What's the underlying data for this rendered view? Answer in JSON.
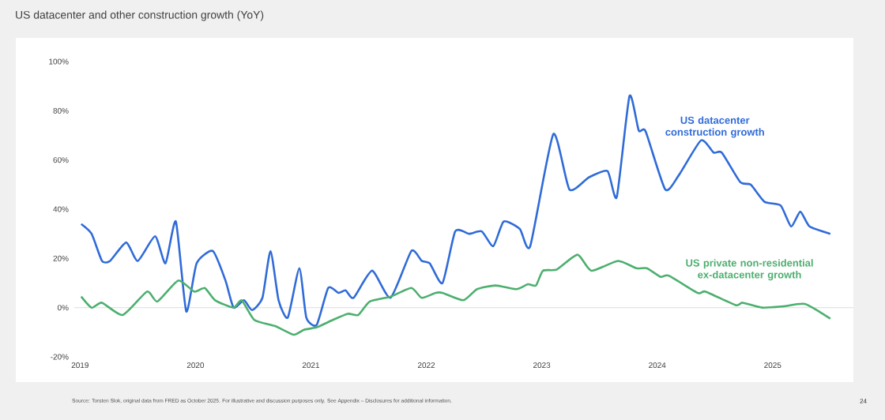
{
  "chart_data": {
    "type": "line",
    "title": "US datacenter and other construction growth (YoY)",
    "xlim": [
      2018.95,
      2025.7
    ],
    "xticks": [
      2019,
      2020,
      2021,
      2022,
      2023,
      2024,
      2025
    ],
    "ylim": [
      -20,
      100
    ],
    "yticks": [
      {
        "value": -20,
        "label": "-20%"
      },
      {
        "value": 0,
        "label": "0%"
      },
      {
        "value": 20,
        "label": "20%"
      },
      {
        "value": 40,
        "label": "40%"
      },
      {
        "value": 60,
        "label": "60%"
      },
      {
        "value": 80,
        "label": "80%"
      },
      {
        "value": 100,
        "label": "100%"
      }
    ],
    "grid": false,
    "legend": false,
    "ref_lines": [
      {
        "axis": "y",
        "value": 0,
        "color": "#e4e4e4"
      }
    ],
    "series": [
      {
        "name": "US datacenter construction growth",
        "color": "#2f6bd8",
        "x": [
          2019.01,
          2019.1,
          2019.19,
          2019.26,
          2019.4,
          2019.5,
          2019.65,
          2019.74,
          2019.83,
          2019.92,
          2020.01,
          2020.15,
          2020.26,
          2020.33,
          2020.42,
          2020.49,
          2020.58,
          2020.65,
          2020.72,
          2020.8,
          2020.9,
          2020.96,
          2021.05,
          2021.15,
          2021.24,
          2021.3,
          2021.37,
          2021.53,
          2021.69,
          2021.87,
          2021.96,
          2022.03,
          2022.14,
          2022.25,
          2022.37,
          2022.48,
          2022.58,
          2022.67,
          2022.81,
          2022.9,
          2023.1,
          2023.24,
          2023.41,
          2023.57,
          2023.65,
          2023.76,
          2023.84,
          2023.9,
          2024.07,
          2024.19,
          2024.38,
          2024.49,
          2024.56,
          2024.72,
          2024.81,
          2024.93,
          2025.07,
          2025.16,
          2025.24,
          2025.32,
          2025.5
        ],
        "values": [
          34,
          30,
          19,
          19,
          26.5,
          19,
          29,
          18,
          35,
          -1.5,
          18,
          23,
          11,
          0,
          3,
          -1,
          4,
          23,
          3,
          -4,
          16,
          -4,
          -7,
          8,
          6,
          7,
          4,
          15,
          4,
          23,
          19,
          18,
          10,
          31,
          30,
          31,
          25,
          35,
          32,
          25,
          70.5,
          48,
          53,
          55.5,
          45,
          86,
          72,
          71.6,
          48,
          54,
          68,
          63,
          63,
          51,
          50,
          43,
          41.5,
          33,
          39,
          33,
          30
        ]
      },
      {
        "name": "US private non-residential ex-datacenter growth",
        "color": "#4caf6e",
        "x": [
          2019.01,
          2019.1,
          2019.19,
          2019.37,
          2019.58,
          2019.67,
          2019.85,
          2019.99,
          2020.08,
          2020.17,
          2020.33,
          2020.4,
          2020.51,
          2020.69,
          2020.85,
          2020.94,
          2021.05,
          2021.19,
          2021.32,
          2021.41,
          2021.51,
          2021.69,
          2021.87,
          2021.96,
          2022.08,
          2022.14,
          2022.32,
          2022.44,
          2022.6,
          2022.78,
          2022.88,
          2022.95,
          2023.01,
          2023.13,
          2023.31,
          2023.43,
          2023.66,
          2023.82,
          2023.91,
          2024.03,
          2024.1,
          2024.35,
          2024.42,
          2024.68,
          2024.74,
          2024.91,
          2025.09,
          2025.28,
          2025.5
        ],
        "values": [
          4.5,
          0,
          2,
          -3,
          6.5,
          2.5,
          11,
          6.5,
          8,
          3,
          0,
          3,
          -5,
          -7.5,
          -11,
          -9,
          -8,
          -5,
          -2.5,
          -3,
          2.5,
          4.5,
          8,
          4,
          6,
          6,
          3,
          7.5,
          9,
          7.5,
          9.5,
          9,
          15,
          15.5,
          21.5,
          15,
          19,
          16,
          16,
          12.5,
          13,
          6,
          6.5,
          1,
          2,
          0,
          0.5,
          1.5,
          -4.5
        ]
      }
    ],
    "annotations": [
      "Source: Torsten Slok, original data from FRED as October 2025. For illustrative and discussion purposes only. See Appendix – Disclosures for additional information.",
      "24"
    ]
  }
}
